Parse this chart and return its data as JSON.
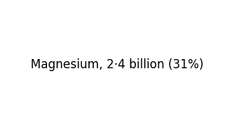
{
  "title": "Magnesium, 2·4 billion (31%)",
  "title_fontsize": 10,
  "background_color": "#ffffff",
  "map_background": "#ffffff",
  "colormap": "RdYlGn_r",
  "subtitle_text": "",
  "border_color": "#ffffff",
  "ocean_color": "#ffffff",
  "figure_width": 3.2,
  "figure_height": 1.8,
  "dpi": 100,
  "country_colors": {
    "Afghanistan": "#3a8a6e",
    "Albania": "#f4a460",
    "Algeria": "#8fbc8f",
    "Angola": "#3a8a6e",
    "Argentina": "#e2734a",
    "Armenia": "#f4a460",
    "Australia": "#90c590",
    "Austria": "#d4e8a0",
    "Azerbaijan": "#f4a460",
    "Bangladesh": "#3a8a6e",
    "Belarus": "#c8e096",
    "Belgium": "#f0e68c",
    "Belize": "#f4a460",
    "Benin": "#3a8a6e",
    "Bolivia": "#e86040",
    "Bosnia and Herzegovina": "#f4a460",
    "Botswana": "#a8d080",
    "Brazil": "#e2734a",
    "Bulgaria": "#d4e8a0",
    "Burkina Faso": "#3a8a6e",
    "Burundi": "#3a8a6e",
    "Cambodia": "#3a8a6e",
    "Cameroon": "#3a8a6e",
    "Canada": "#c8e096",
    "Central African Republic": "#3a8a6e",
    "Chad": "#8fbc8f",
    "Chile": "#e86040",
    "China": "#c8d890",
    "Colombia": "#e86040",
    "Congo": "#3a8a6e",
    "Costa Rica": "#e86040",
    "Croatia": "#d4e8a0",
    "Czech Republic": "#d4e8a0",
    "Democratic Republic of the Congo": "#3a8a6e",
    "Denmark": "#d4e8a0",
    "Dominican Republic": "#e86040",
    "Ecuador": "#e86040",
    "Egypt": "#8fbc8f",
    "El Salvador": "#e86040",
    "Eritrea": "#3a8a6e",
    "Ethiopia": "#3a8a6e",
    "Finland": "#c8e096",
    "France": "#d4e8a0",
    "Gabon": "#3a8a6e",
    "Georgia": "#f4a460",
    "Germany": "#d4e8a0",
    "Ghana": "#3a8a6e",
    "Greece": "#d4e8a0",
    "Guatemala": "#e86040",
    "Guinea": "#3a8a6e",
    "Haiti": "#e86040",
    "Honduras": "#e86040",
    "Hungary": "#d4e8a0",
    "India": "#3a8a6e",
    "Indonesia": "#3a8a6e",
    "Iran": "#8fbc8f",
    "Iraq": "#8fbc8f",
    "Ireland": "#d4e8a0",
    "Israel": "#f4a460",
    "Italy": "#d4e8a0",
    "Ivory Coast": "#3a8a6e",
    "Jamaica": "#e86040",
    "Japan": "#d4e8a0",
    "Jordan": "#8fbc8f",
    "Kazakhstan": "#c8d890",
    "Kenya": "#3a8a6e",
    "Kuwait": "#f4a460",
    "Laos": "#3a8a6e",
    "Lebanon": "#f4a460",
    "Libya": "#8fbc8f",
    "Madagascar": "#c8d890",
    "Malawi": "#3a8a6e",
    "Malaysia": "#3a8a6e",
    "Mali": "#8fbc8f",
    "Mauritania": "#8fbc8f",
    "Mexico": "#e86040",
    "Moldova": "#d4e8a0",
    "Mongolia": "#c8d890",
    "Morocco": "#8fbc8f",
    "Mozambique": "#3a8a6e",
    "Myanmar": "#3a8a6e",
    "Namibia": "#a8d080",
    "Nepal": "#3a8a6e",
    "Netherlands": "#d4e8a0",
    "New Zealand": "#90c590",
    "Nicaragua": "#e86040",
    "Niger": "#8fbc8f",
    "Nigeria": "#3a8a6e",
    "North Korea": "#3a8a6e",
    "Norway": "#c8e096",
    "Oman": "#f4a460",
    "Pakistan": "#3a8a6e",
    "Panama": "#e86040",
    "Papua New Guinea": "#3a8a6e",
    "Paraguay": "#e2734a",
    "Peru": "#e86040",
    "Philippines": "#3a8a6e",
    "Poland": "#d4e8a0",
    "Portugal": "#d4e8a0",
    "Romania": "#d4e8a0",
    "Russia": "#c8e096",
    "Saudi Arabia": "#8fbc8f",
    "Senegal": "#3a8a6e",
    "Sierra Leone": "#3a8a6e",
    "Slovakia": "#d4e8a0",
    "Somalia": "#3a8a6e",
    "South Africa": "#a8d080",
    "South Korea": "#e8c080",
    "South Sudan": "#3a8a6e",
    "Spain": "#d4e8a0",
    "Sri Lanka": "#3a8a6e",
    "Sudan": "#8fbc8f",
    "Sweden": "#c8e096",
    "Switzerland": "#d4e8a0",
    "Syria": "#f4a460",
    "Taiwan": "#e8c080",
    "Tajikistan": "#3a8a6e",
    "Tanzania": "#3a8a6e",
    "Thailand": "#3a8a6e",
    "Togo": "#3a8a6e",
    "Tunisia": "#8fbc8f",
    "Turkey": "#d4e8a0",
    "Turkmenistan": "#c8d890",
    "Uganda": "#3a8a6e",
    "Ukraine": "#d4e8a0",
    "United Arab Emirates": "#f4a460",
    "United Kingdom": "#d4e8a0",
    "United States of America": "#c8d890",
    "Uruguay": "#e2734a",
    "Uzbekistan": "#c8d890",
    "Venezuela": "#e86040",
    "Vietnam": "#3a8a6e",
    "Yemen": "#3a8a6e",
    "Zambia": "#3a8a6e",
    "Zimbabwe": "#3a8a6e"
  },
  "default_color": "#d4e8a0",
  "no_data_color": "#c0c0c0"
}
